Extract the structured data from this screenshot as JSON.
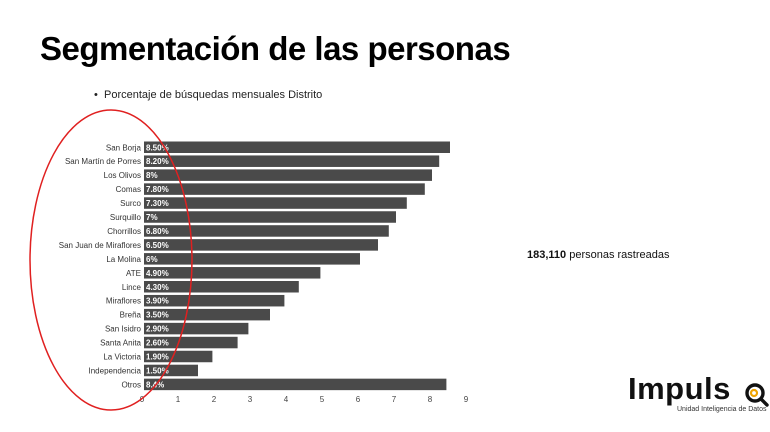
{
  "slide": {
    "title": "Segmentación de las personas",
    "bullet": "Porcentaje de búsquedas mensuales Distrito"
  },
  "stat": {
    "value": "183,110",
    "text": " personas rastreadas"
  },
  "logo": {
    "word": "Impuls",
    "subtitle": "Unidad Inteligencia de Datos",
    "icon": "magnifier-o-icon",
    "accent_color": "#f0a400"
  },
  "chart_data": {
    "type": "bar",
    "orientation": "horizontal",
    "categories": [
      "San Borja",
      "San Martín de Porres",
      "Los Olivos",
      "Comas",
      "Surco",
      "Surquillo",
      "Chorrillos",
      "San Juan de Miraflores",
      "La Molina",
      "ATE",
      "Lince",
      "Miraflores",
      "Breña",
      "San Isidro",
      "Santa Anita",
      "La Victoria",
      "Independencia",
      "Otros"
    ],
    "values": [
      8.5,
      8.2,
      8.0,
      7.8,
      7.3,
      7.0,
      6.8,
      6.5,
      6.0,
      4.9,
      4.3,
      3.9,
      3.5,
      2.9,
      2.6,
      1.9,
      1.5,
      8.4
    ],
    "data_labels": [
      "8.50%",
      "8.20%",
      "8%",
      "7.80%",
      "7.30%",
      "7%",
      "6.80%",
      "6.50%",
      "6%",
      "4.90%",
      "4.30%",
      "3.90%",
      "3.50%",
      "2.90%",
      "2.60%",
      "1.90%",
      "1.50%",
      "8.4%"
    ],
    "x_ticks": [
      "0",
      "1",
      "2",
      "3",
      "4",
      "5",
      "6",
      "7",
      "8",
      "9"
    ],
    "xlim": [
      0,
      9
    ],
    "grid": false,
    "bar_color": "#4a4a4a",
    "label_color": "#ffffff",
    "annotation_color": "#e02020"
  }
}
